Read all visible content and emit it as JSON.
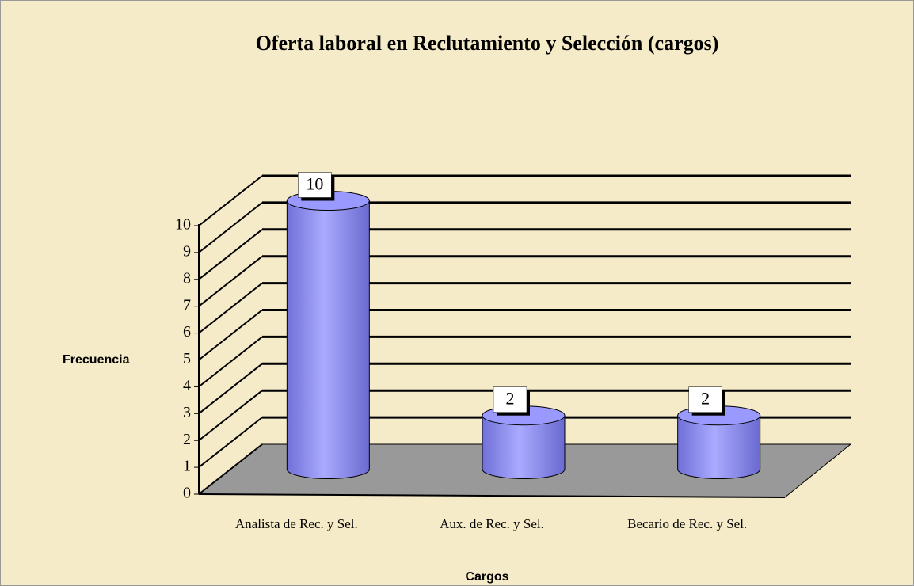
{
  "chart_data": {
    "type": "bar",
    "title": "Oferta laboral en Reclutamiento y Selección (cargos)",
    "x_label": "Cargos",
    "y_label": "Frecuencia",
    "categories": [
      "Analista de Rec. y Sel.",
      "Aux. de Rec. y Sel.",
      "Becario de Rec. y Sel."
    ],
    "values": [
      10,
      2,
      2
    ],
    "color": "#9999ff",
    "ylim": [
      0,
      10
    ],
    "yticks": [
      0,
      1,
      2,
      3,
      4,
      5,
      6,
      7,
      8,
      9,
      10
    ],
    "grid": true
  }
}
